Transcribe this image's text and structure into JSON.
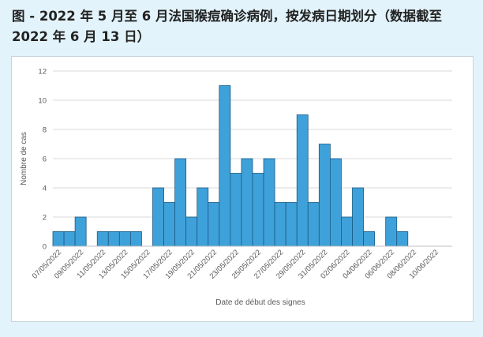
{
  "title": "图 - 2022 年 5 月至 6 月法国猴痘确诊病例，按发病日期划分（数据截至 2022 年 6 月 13 日）",
  "colors": {
    "bar_fill": "#3fa1d9",
    "bar_stroke": "#1a5b86",
    "grid": "#d9d9d9",
    "background": "#e2f3fb"
  },
  "chart_data": {
    "type": "bar",
    "title": "",
    "xlabel": "Date de début des signes",
    "ylabel": "Nombre de cas",
    "ylim": [
      0,
      12
    ],
    "yticks": [
      0,
      2,
      4,
      6,
      8,
      10,
      12
    ],
    "grid": true,
    "x_tick_labels": [
      "07/05/2022",
      "09/05/2022",
      "11/05/2022",
      "13/05/2022",
      "15/05/2022",
      "17/05/2022",
      "19/05/2022",
      "21/05/2022",
      "23/05/2022",
      "25/05/2022",
      "27/05/2022",
      "29/05/2022",
      "31/05/2022",
      "02/06/2022",
      "04/06/2022",
      "06/06/2022",
      "08/06/2022",
      "10/06/2022"
    ],
    "categories": [
      "07/05/2022",
      "08/05/2022",
      "09/05/2022",
      "10/05/2022",
      "11/05/2022",
      "12/05/2022",
      "13/05/2022",
      "14/05/2022",
      "15/05/2022",
      "16/05/2022",
      "17/05/2022",
      "18/05/2022",
      "19/05/2022",
      "20/05/2022",
      "21/05/2022",
      "22/05/2022",
      "23/05/2022",
      "24/05/2022",
      "25/05/2022",
      "26/05/2022",
      "27/05/2022",
      "28/05/2022",
      "29/05/2022",
      "30/05/2022",
      "31/05/2022",
      "01/06/2022",
      "02/06/2022",
      "03/06/2022",
      "04/06/2022",
      "05/06/2022",
      "06/06/2022",
      "07/06/2022",
      "08/06/2022",
      "09/06/2022",
      "10/06/2022",
      "11/06/2022"
    ],
    "values": [
      1,
      1,
      2,
      0,
      1,
      1,
      1,
      1,
      0,
      4,
      3,
      6,
      2,
      4,
      3,
      11,
      5,
      6,
      5,
      6,
      3,
      3,
      9,
      3,
      7,
      6,
      2,
      4,
      1,
      0,
      2,
      1,
      0,
      0,
      0,
      0
    ]
  }
}
